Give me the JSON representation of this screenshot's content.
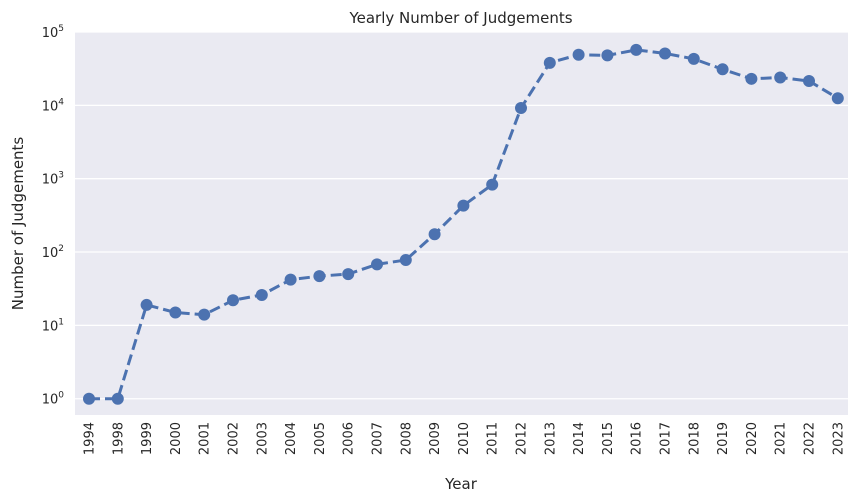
{
  "chart_data": {
    "type": "line",
    "title": "Yearly Number of Judgements",
    "xlabel": "Year",
    "ylabel": "Number of Judgements",
    "yscale": "log",
    "ylim": [
      0.6,
      100000
    ],
    "yticks": [
      {
        "value": 1,
        "base": "10",
        "exp": "0"
      },
      {
        "value": 10,
        "base": "10",
        "exp": "1"
      },
      {
        "value": 100,
        "base": "10",
        "exp": "2"
      },
      {
        "value": 1000,
        "base": "10",
        "exp": "3"
      },
      {
        "value": 10000,
        "base": "10",
        "exp": "4"
      },
      {
        "value": 100000,
        "base": "10",
        "exp": "5"
      }
    ],
    "grid": true,
    "line_style": "dashed",
    "color": "#4c72b0",
    "background": "#eaeaf2",
    "categories": [
      "1994",
      "1998",
      "1999",
      "2000",
      "2001",
      "2002",
      "2003",
      "2004",
      "2005",
      "2006",
      "2007",
      "2008",
      "2009",
      "2010",
      "2011",
      "2012",
      "2013",
      "2014",
      "2015",
      "2016",
      "2017",
      "2018",
      "2019",
      "2020",
      "2021",
      "2022",
      "2023"
    ],
    "values": [
      1,
      1,
      19,
      15,
      14,
      22,
      26,
      42,
      47,
      50,
      68,
      78,
      175,
      430,
      830,
      9200,
      38000,
      49000,
      48000,
      57000,
      51000,
      43000,
      31000,
      23000,
      24000,
      21500,
      12500
    ]
  }
}
